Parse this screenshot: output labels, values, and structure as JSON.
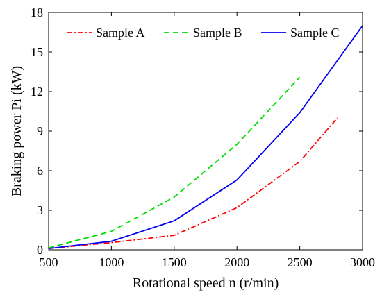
{
  "chart_data": {
    "type": "line",
    "title": "",
    "xlabel": "Rotational speed n (r/min)",
    "ylabel": "Braking power Pi (kW)",
    "xlim": [
      500,
      3000
    ],
    "ylim": [
      0,
      18
    ],
    "xticks": [
      500,
      1000,
      1500,
      2000,
      2500,
      3000
    ],
    "yticks": [
      0,
      3,
      6,
      9,
      12,
      15,
      18
    ],
    "grid": false,
    "legend_position": "top",
    "series": [
      {
        "name": "Sample A",
        "color": "#ff0000",
        "dash": "dash-dot",
        "x": [
          500,
          1000,
          1500,
          2000,
          2500,
          2800
        ],
        "y": [
          0.1,
          0.55,
          1.1,
          3.2,
          6.7,
          10.0
        ]
      },
      {
        "name": "Sample B",
        "color": "#00dd00",
        "dash": "dashed",
        "x": [
          500,
          1000,
          1500,
          2000,
          2500
        ],
        "y": [
          0.15,
          1.4,
          4.0,
          8.0,
          13.1
        ]
      },
      {
        "name": "Sample C",
        "color": "#0000ee",
        "dash": "solid",
        "x": [
          500,
          1000,
          1500,
          2000,
          2500,
          3000
        ],
        "y": [
          0.1,
          0.65,
          2.2,
          5.3,
          10.4,
          17.0
        ]
      }
    ]
  }
}
